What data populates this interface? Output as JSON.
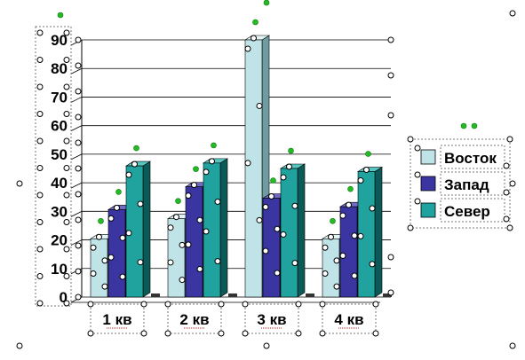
{
  "chart_data": {
    "type": "bar",
    "style": "3d-clustered-column",
    "categories": [
      "1 кв",
      "2 кв",
      "3 кв",
      "4 кв"
    ],
    "series": [
      {
        "name": "Восток",
        "values": [
          20.4,
          27.4,
          90,
          20.4
        ]
      },
      {
        "name": "Запад",
        "values": [
          30.6,
          38.6,
          34.6,
          31.6
        ]
      },
      {
        "name": "Север",
        "values": [
          45.9,
          46.9,
          45,
          43.9
        ]
      }
    ],
    "yticks": [
      "0",
      "10",
      "20",
      "30",
      "40",
      "50",
      "60",
      "70",
      "80",
      "90"
    ],
    "ylim": [
      0,
      90
    ],
    "grid": true,
    "legend": "right",
    "colors": {
      "series": [
        "#bfe3e6",
        "#3a35a0",
        "#20a29e"
      ],
      "series_side": [
        "#6f9ca0",
        "#1c1860",
        "#0c5a57"
      ],
      "series_top": [
        "#e4f4f5",
        "#6f6bc4",
        "#55c6c2"
      ],
      "grid": "#000000",
      "handle_fill": "#ffffff",
      "handle_stroke": "#000000",
      "rotation_handle": "#22bb22"
    }
  }
}
